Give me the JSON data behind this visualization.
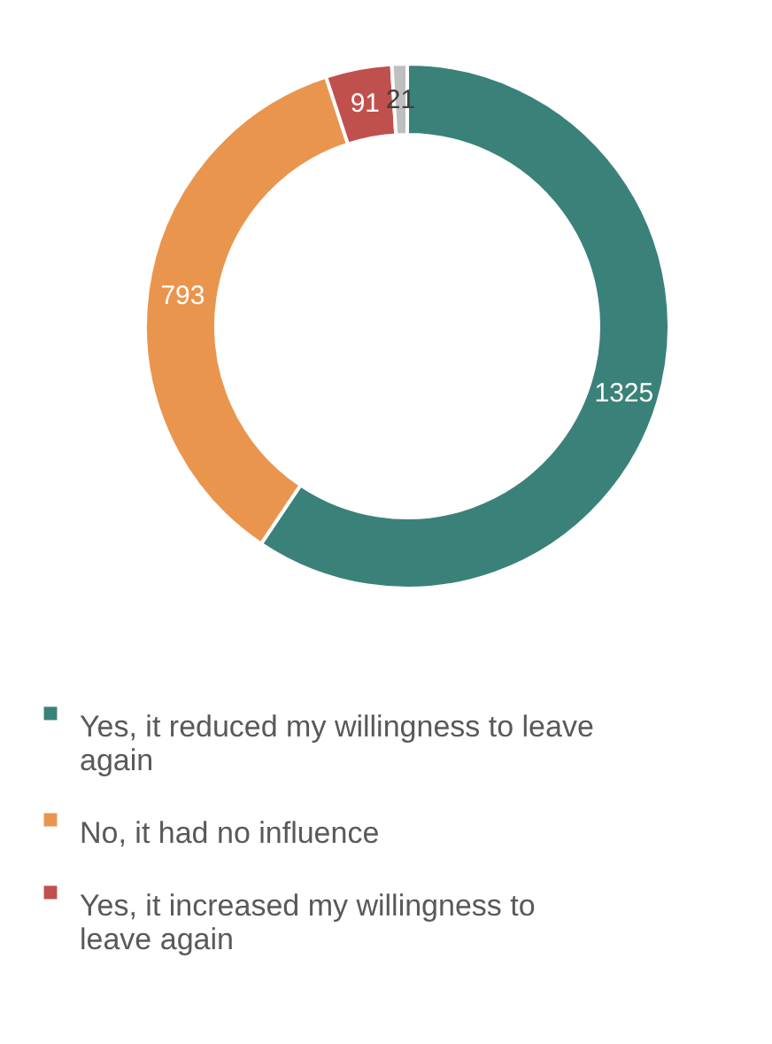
{
  "chart_data": {
    "type": "donut",
    "categories": [
      "Yes, it reduced my willingness to leave again",
      "No, it had no influence",
      "Yes, it increased my willingness to leave again",
      null
    ],
    "values": [
      1325,
      793,
      91,
      21
    ],
    "colors": [
      "#3a8279",
      "#e9954e",
      "#c0504d",
      "#bfbfbf"
    ],
    "data_labels": true,
    "legend": "bottom"
  }
}
